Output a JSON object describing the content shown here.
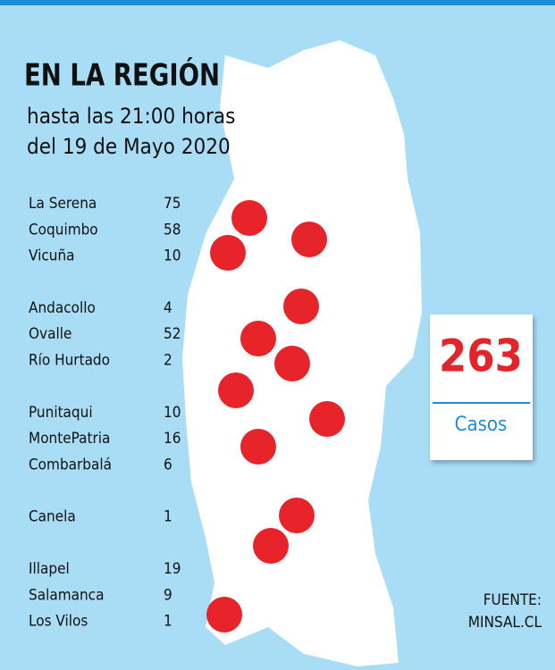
{
  "header": {
    "title": "EN LA REGIÓN",
    "subtitle": [
      "hasta las 21:00 horas",
      "del 19 de Mayo 2020"
    ]
  },
  "communes": [
    [
      {
        "name": "La Serena",
        "cases": "75"
      },
      {
        "name": "Coquimbo",
        "cases": "58"
      },
      {
        "name": "Vicuña",
        "cases": "10"
      }
    ],
    [
      {
        "name": "Andacollo",
        "cases": "4"
      },
      {
        "name": "Ovalle",
        "cases": "52"
      },
      {
        "name": "Río Hurtado",
        "cases": "2"
      }
    ],
    [
      {
        "name": "Punitaqui",
        "cases": "10"
      },
      {
        "name": "MontePatria",
        "cases": "16"
      },
      {
        "name": "Combarbalá",
        "cases": "6"
      }
    ],
    [
      {
        "name": "Canela",
        "cases": "1"
      }
    ],
    [
      {
        "name": "Illapel",
        "cases": "19"
      },
      {
        "name": "Salamanca",
        "cases": "9"
      },
      {
        "name": "Los Vilos",
        "cases": "1"
      }
    ]
  ],
  "total": {
    "value": "263",
    "label": "Casos"
  },
  "source": [
    "FUENTE:",
    "MINSAL.CL"
  ]
}
